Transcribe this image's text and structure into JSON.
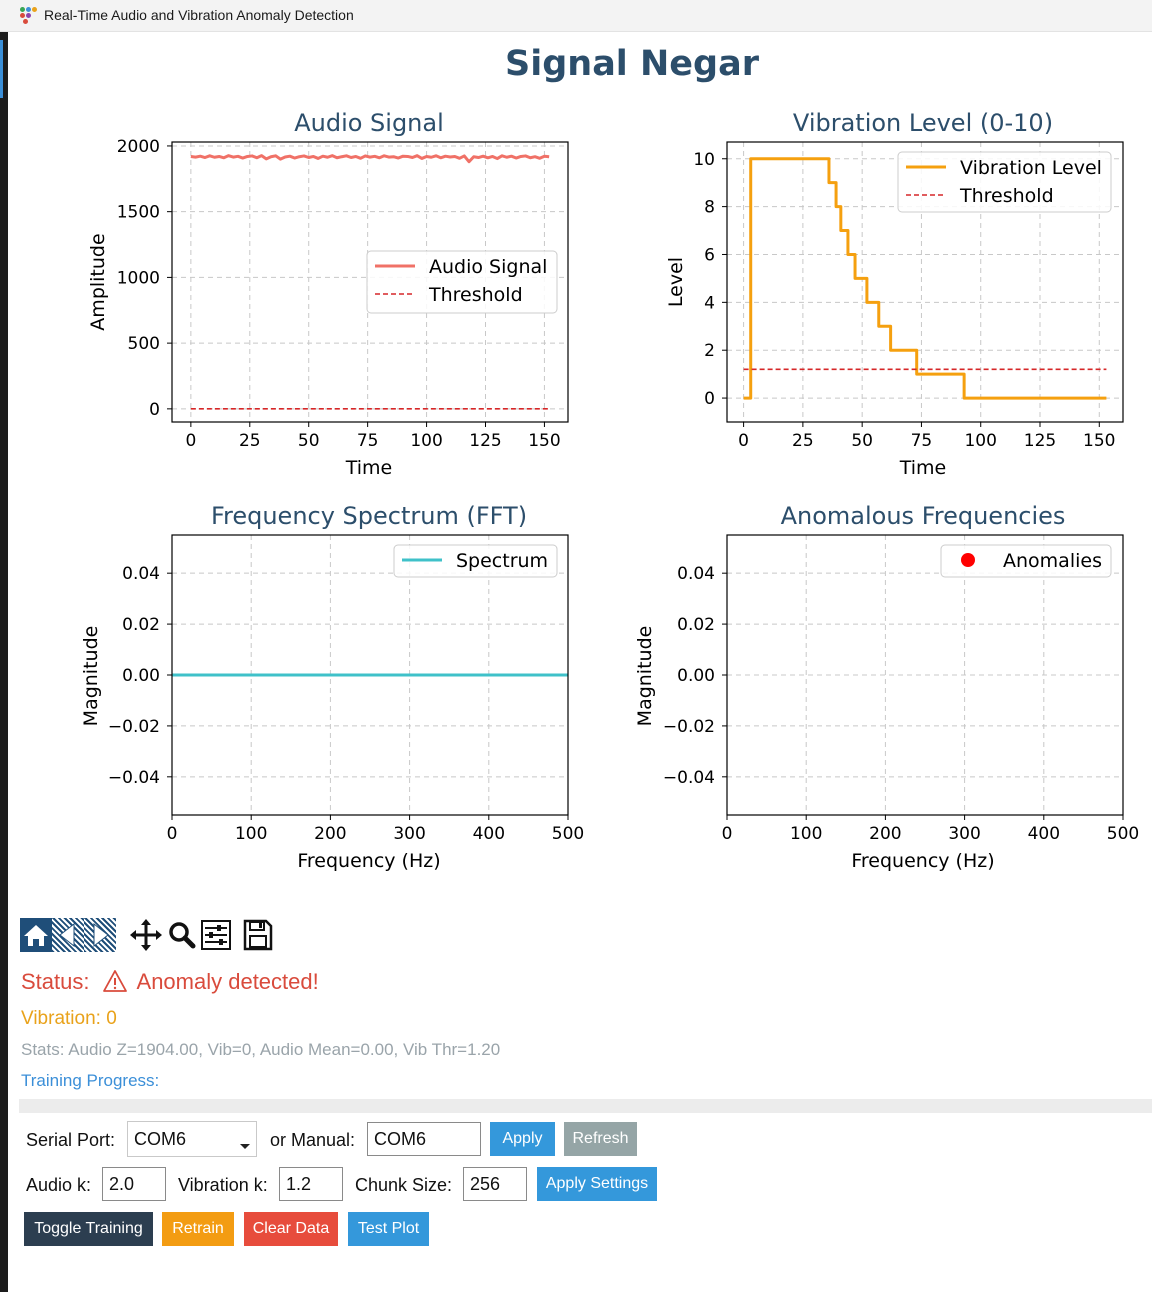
{
  "window": {
    "title": "Real-Time Audio and Vibration Anomaly Detection"
  },
  "page": {
    "title": "Signal Negar"
  },
  "colors": {
    "audio": "#f07167",
    "threshold": "#d62728",
    "vibration": "#f5a00f",
    "spectrum": "#3fc1c9",
    "anomaly": "#ff0000",
    "heading": "#2c4e6b",
    "status": "#d94b3c",
    "vib_text": "#e9a21a",
    "btn_dark": "#2c3e50",
    "btn_orange": "#f39c12",
    "btn_red": "#e74c3c",
    "btn_blue": "#3498db",
    "btn_gray": "#95a5a6"
  },
  "chart_data": [
    {
      "type": "line",
      "title": "Audio Signal",
      "xlabel": "Time",
      "ylabel": "Amplitude",
      "xlim": [
        -8,
        160
      ],
      "ylim": [
        -100,
        2030
      ],
      "xticks": [
        "0",
        "25",
        "50",
        "75",
        "100",
        "125",
        "150"
      ],
      "xtick_values": [
        0,
        25,
        50,
        75,
        100,
        125,
        150
      ],
      "yticks": [
        "0",
        "500",
        "1000",
        "1500",
        "2000"
      ],
      "ytick_values": [
        0,
        500,
        1000,
        1500,
        2000
      ],
      "legend": "center-right",
      "grid": true,
      "series": [
        {
          "name": "Audio Signal",
          "style": "solid",
          "x": [
            0,
            2,
            4,
            6,
            8,
            10,
            12,
            14,
            16,
            18,
            20,
            22,
            24,
            26,
            28,
            30,
            32,
            34,
            36,
            38,
            40,
            42,
            44,
            46,
            48,
            50,
            52,
            54,
            56,
            58,
            60,
            62,
            64,
            66,
            68,
            70,
            72,
            74,
            76,
            78,
            80,
            82,
            84,
            86,
            88,
            90,
            92,
            94,
            96,
            98,
            100,
            102,
            104,
            106,
            108,
            110,
            112,
            114,
            116,
            118,
            120,
            122,
            124,
            126,
            128,
            130,
            132,
            134,
            136,
            138,
            140,
            142,
            144,
            146,
            148,
            150,
            152
          ],
          "y": [
            1920,
            1915,
            1922,
            1912,
            1925,
            1914,
            1920,
            1910,
            1926,
            1915,
            1921,
            1908,
            1920,
            1924,
            1910,
            1926,
            1902,
            1918,
            1925,
            1900,
            1916,
            1922,
            1908,
            1918,
            1924,
            1912,
            1920,
            1905,
            1922,
            1914,
            1926,
            1910,
            1918,
            1925,
            1912,
            1920,
            1906,
            1924,
            1915,
            1921,
            1910,
            1925,
            1915,
            1918,
            1908,
            1922,
            1920,
            1912,
            1926,
            1905,
            1920,
            1914,
            1925,
            1910,
            1922,
            1916,
            1920,
            1906,
            1924,
            1880,
            1918,
            1912,
            1922,
            1910,
            1920,
            1904,
            1925,
            1914,
            1922,
            1908,
            1920,
            1924,
            1910,
            1918,
            1906,
            1922,
            1918
          ]
        },
        {
          "name": "Threshold",
          "style": "dashed",
          "x": [
            0,
            152
          ],
          "y": [
            0,
            0
          ]
        }
      ]
    },
    {
      "type": "line",
      "title": "Vibration Level (0-10)",
      "xlabel": "Time",
      "ylabel": "Level",
      "xlim": [
        -7,
        160
      ],
      "ylim": [
        -1,
        10.7
      ],
      "xticks": [
        "0",
        "25",
        "50",
        "75",
        "100",
        "125",
        "150"
      ],
      "xtick_values": [
        0,
        25,
        50,
        75,
        100,
        125,
        150
      ],
      "yticks": [
        "0",
        "2",
        "4",
        "6",
        "8",
        "10"
      ],
      "ytick_values": [
        0,
        2,
        4,
        6,
        8,
        10
      ],
      "legend": "top-right",
      "grid": true,
      "series": [
        {
          "name": "Vibration Level",
          "style": "step",
          "x": [
            0,
            2,
            3,
            35,
            36,
            38,
            39,
            40,
            41,
            42,
            43,
            44,
            45,
            46,
            47,
            48,
            49,
            50,
            51,
            52,
            53,
            54,
            55,
            56,
            57,
            58,
            59,
            60,
            61,
            62,
            63,
            64,
            65,
            66,
            67,
            68,
            69,
            70,
            71,
            72,
            73,
            92,
            93,
            153
          ],
          "y": [
            0,
            0,
            10,
            10,
            9,
            9,
            8,
            8,
            7,
            7,
            7,
            6,
            6,
            6,
            5,
            5,
            5,
            5,
            5,
            4,
            4,
            4,
            4,
            4,
            3,
            3,
            3,
            3,
            3,
            2,
            2,
            2,
            2,
            2,
            2,
            2,
            2,
            2,
            2,
            2,
            1,
            1,
            0,
            0
          ]
        },
        {
          "name": "Threshold",
          "style": "dashed",
          "x": [
            0,
            153
          ],
          "y": [
            1.2,
            1.2
          ]
        }
      ]
    },
    {
      "type": "line",
      "title": "Frequency Spectrum (FFT)",
      "xlabel": "Frequency (Hz)",
      "ylabel": "Magnitude",
      "xlim": [
        0,
        500
      ],
      "ylim": [
        -0.055,
        0.055
      ],
      "xticks": [
        "0",
        "100",
        "200",
        "300",
        "400",
        "500"
      ],
      "xtick_values": [
        0,
        100,
        200,
        300,
        400,
        500
      ],
      "yticks": [
        "0.04",
        "0.02",
        "0.00",
        "−0.02",
        "−0.04"
      ],
      "ytick_values": [
        0.04,
        0.02,
        0,
        -0.02,
        -0.04
      ],
      "legend": "top-right",
      "grid": true,
      "series": [
        {
          "name": "Spectrum",
          "style": "solid",
          "x": [
            0,
            500
          ],
          "y": [
            0,
            0
          ]
        }
      ]
    },
    {
      "type": "scatter",
      "title": "Anomalous Frequencies",
      "xlabel": "Frequency (Hz)",
      "ylabel": "Magnitude",
      "xlim": [
        0,
        500
      ],
      "ylim": [
        -0.055,
        0.055
      ],
      "xticks": [
        "0",
        "100",
        "200",
        "300",
        "400",
        "500"
      ],
      "xtick_values": [
        0,
        100,
        200,
        300,
        400,
        500
      ],
      "yticks": [
        "0.04",
        "0.02",
        "0.00",
        "−0.02",
        "−0.04"
      ],
      "ytick_values": [
        0.04,
        0.02,
        0,
        -0.02,
        -0.04
      ],
      "legend": "top-right",
      "grid": true,
      "series": [
        {
          "name": "Anomalies",
          "style": "marker",
          "x": [],
          "y": []
        }
      ]
    }
  ],
  "toolbar": {
    "icons": [
      "home-icon",
      "back-icon",
      "forward-icon",
      "pan-icon",
      "zoom-icon",
      "configure-subplots-icon",
      "save-icon"
    ]
  },
  "status": {
    "label": "Status:",
    "text": "Anomaly detected!",
    "icon": "warning-icon"
  },
  "vibration_readout": "Vibration: 0",
  "stats": "Stats: Audio Z=1904.00, Vib=0, Audio Mean=0.00, Vib Thr=1.20",
  "training": {
    "label": "Training Progress:",
    "progress": 0
  },
  "controls": {
    "serial_port_label": "Serial Port:",
    "serial_port_value": "COM6",
    "manual_label": "or Manual:",
    "manual_value": "COM6",
    "apply_label": "Apply",
    "refresh_label": "Refresh",
    "audio_k_label": "Audio k:",
    "audio_k_value": "2.0",
    "vibration_k_label": "Vibration k:",
    "vibration_k_value": "1.2",
    "chunk_size_label": "Chunk Size:",
    "chunk_size_value": "256",
    "apply_settings_label": "Apply Settings",
    "toggle_training_label": "Toggle Training",
    "retrain_label": "Retrain",
    "clear_data_label": "Clear Data",
    "test_plot_label": "Test Plot"
  }
}
